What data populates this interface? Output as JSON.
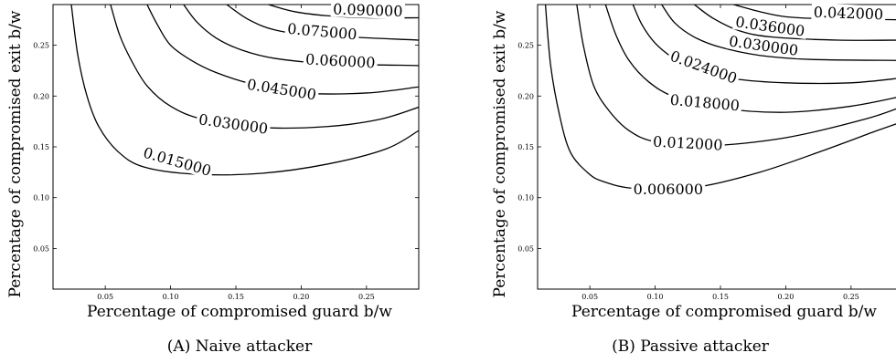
{
  "chart_data": [
    {
      "type": "contour",
      "caption": "(A) Naive attacker",
      "xlabel": "Percentage of compromised guard b/w",
      "ylabel": "Percentage of compromised exit b/w",
      "xlim": [
        0.01,
        0.29
      ],
      "ylim": [
        0.01,
        0.29
      ],
      "xticks": [
        "0.05",
        "0.10",
        "0.15",
        "0.20",
        "0.25"
      ],
      "yticks": [
        "0.05",
        "0.10",
        "0.15",
        "0.20",
        "0.25"
      ],
      "levels": [
        {
          "label": "0.015000",
          "points": [
            [
              0.024,
              0.29
            ],
            [
              0.029,
              0.24
            ],
            [
              0.036,
              0.2
            ],
            [
              0.045,
              0.17
            ],
            [
              0.06,
              0.145
            ],
            [
              0.08,
              0.13
            ],
            [
              0.12,
              0.123
            ],
            [
              0.17,
              0.124
            ],
            [
              0.22,
              0.133
            ],
            [
              0.265,
              0.148
            ],
            [
              0.29,
              0.166
            ]
          ],
          "label_at": [
            0.105,
            0.135
          ],
          "angle": 16
        },
        {
          "label": "0.030000",
          "points": [
            [
              0.054,
              0.29
            ],
            [
              0.061,
              0.26
            ],
            [
              0.07,
              0.235
            ],
            [
              0.082,
              0.21
            ],
            [
              0.1,
              0.19
            ],
            [
              0.125,
              0.177
            ],
            [
              0.17,
              0.169
            ],
            [
              0.22,
              0.17
            ],
            [
              0.26,
              0.177
            ],
            [
              0.29,
              0.189
            ]
          ],
          "label_at": [
            0.148,
            0.172
          ],
          "angle": 8
        },
        {
          "label": "0.045000",
          "points": [
            [
              0.082,
              0.29
            ],
            [
              0.09,
              0.27
            ],
            [
              0.1,
              0.25
            ],
            [
              0.116,
              0.235
            ],
            [
              0.135,
              0.223
            ],
            [
              0.162,
              0.212
            ],
            [
              0.2,
              0.203
            ],
            [
              0.25,
              0.203
            ],
            [
              0.29,
              0.209
            ]
          ],
          "label_at": [
            0.185,
            0.206
          ],
          "angle": 9
        },
        {
          "label": "0.060000",
          "points": [
            [
              0.11,
              0.29
            ],
            [
              0.12,
              0.273
            ],
            [
              0.135,
              0.257
            ],
            [
              0.155,
              0.245
            ],
            [
              0.18,
              0.237
            ],
            [
              0.22,
              0.232
            ],
            [
              0.29,
              0.23
            ]
          ],
          "label_at": [
            0.23,
            0.234
          ],
          "angle": 3
        },
        {
          "label": "0.075000",
          "points": [
            [
              0.143,
              0.29
            ],
            [
              0.16,
              0.275
            ],
            [
              0.18,
              0.265
            ],
            [
              0.21,
              0.26
            ],
            [
              0.29,
              0.255
            ]
          ],
          "label_at": [
            0.216,
            0.263
          ],
          "angle": 5
        },
        {
          "label": "0.090000",
          "points": [
            [
              0.175,
              0.29
            ],
            [
              0.195,
              0.283
            ],
            [
              0.22,
              0.279
            ],
            [
              0.25,
              0.277
            ],
            [
              0.29,
              0.277
            ]
          ],
          "label_at": [
            0.251,
            0.284
          ],
          "angle": 2
        }
      ]
    },
    {
      "type": "contour",
      "caption": "(B) Passive attacker",
      "xlabel": "Percentage of compromised guard b/w",
      "ylabel": "Percentage of compromised exit b/w",
      "xlim": [
        0.01,
        0.29
      ],
      "ylim": [
        0.01,
        0.29
      ],
      "xticks": [
        "0.05",
        "0.10",
        "0.15",
        "0.20",
        "0.25"
      ],
      "yticks": [
        "0.05",
        "0.10",
        "0.15",
        "0.20",
        "0.25"
      ],
      "levels": [
        {
          "label": "0.006000",
          "points": [
            [
              0.016,
              0.29
            ],
            [
              0.02,
              0.23
            ],
            [
              0.027,
              0.18
            ],
            [
              0.035,
              0.145
            ],
            [
              0.048,
              0.125
            ],
            [
              0.06,
              0.116
            ],
            [
              0.085,
              0.109
            ],
            [
              0.13,
              0.11
            ],
            [
              0.18,
              0.125
            ],
            [
              0.23,
              0.147
            ],
            [
              0.27,
              0.166
            ],
            [
              0.29,
              0.175
            ]
          ],
          "label_at": [
            0.11,
            0.108
          ],
          "angle": 0
        },
        {
          "label": "0.012000",
          "points": [
            [
              0.04,
              0.29
            ],
            [
              0.045,
              0.25
            ],
            [
              0.053,
              0.21
            ],
            [
              0.065,
              0.185
            ],
            [
              0.08,
              0.166
            ],
            [
              0.1,
              0.155
            ],
            [
              0.14,
              0.151
            ],
            [
              0.2,
              0.159
            ],
            [
              0.26,
              0.177
            ],
            [
              0.29,
              0.19
            ]
          ],
          "label_at": [
            0.125,
            0.153
          ],
          "angle": 3
        },
        {
          "label": "0.018000",
          "points": [
            [
              0.062,
              0.29
            ],
            [
              0.07,
              0.26
            ],
            [
              0.08,
              0.235
            ],
            [
              0.095,
              0.214
            ],
            [
              0.115,
              0.199
            ],
            [
              0.15,
              0.188
            ],
            [
              0.2,
              0.184
            ],
            [
              0.25,
              0.19
            ],
            [
              0.29,
              0.2
            ]
          ],
          "label_at": [
            0.138,
            0.193
          ],
          "angle": 5
        },
        {
          "label": "0.024000",
          "points": [
            [
              0.083,
              0.29
            ],
            [
              0.09,
              0.27
            ],
            [
              0.1,
              0.252
            ],
            [
              0.113,
              0.238
            ],
            [
              0.13,
              0.225
            ],
            [
              0.16,
              0.217
            ],
            [
              0.2,
              0.213
            ],
            [
              0.25,
              0.213
            ],
            [
              0.29,
              0.218
            ]
          ],
          "label_at": [
            0.137,
            0.228
          ],
          "angle": 20
        },
        {
          "label": "0.030000",
          "points": [
            [
              0.105,
              0.29
            ],
            [
              0.115,
              0.272
            ],
            [
              0.13,
              0.258
            ],
            [
              0.15,
              0.248
            ],
            [
              0.18,
              0.24
            ],
            [
              0.22,
              0.236
            ],
            [
              0.29,
              0.235
            ]
          ],
          "label_at": [
            0.183,
            0.249
          ],
          "angle": 8
        },
        {
          "label": "0.036000",
          "points": [
            [
              0.13,
              0.29
            ],
            [
              0.145,
              0.276
            ],
            [
              0.165,
              0.264
            ],
            [
              0.19,
              0.258
            ],
            [
              0.24,
              0.255
            ],
            [
              0.29,
              0.255
            ]
          ],
          "label_at": [
            0.188,
            0.268
          ],
          "angle": 8
        },
        {
          "label": "0.042000",
          "points": [
            [
              0.16,
              0.29
            ],
            [
              0.18,
              0.283
            ],
            [
              0.2,
              0.278
            ],
            [
              0.23,
              0.276
            ],
            [
              0.29,
              0.275
            ]
          ],
          "label_at": [
            0.248,
            0.281
          ],
          "angle": 2
        }
      ]
    }
  ]
}
